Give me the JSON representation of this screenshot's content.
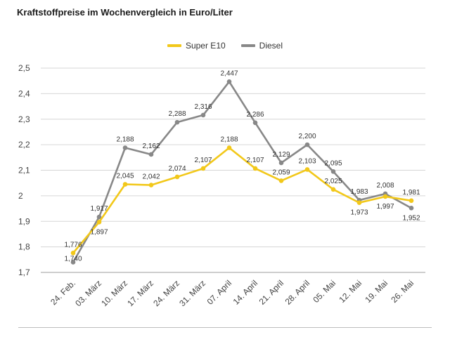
{
  "chart_data": {
    "type": "line",
    "title": "Kraftstoffpreise im Wochenvergleich in Euro/Liter",
    "categories": [
      "24. Feb.",
      "03. März",
      "10. März",
      "17. März",
      "24. März",
      "31. März",
      "07. April",
      "14. April",
      "21. April",
      "28. April",
      "05. Mai",
      "12. Mai",
      "19. Mai",
      "26. Mai"
    ],
    "series": [
      {
        "name": "Super E10",
        "color": "#f2c81a",
        "values": [
          1.776,
          1.897,
          2.045,
          2.042,
          2.074,
          2.107,
          2.188,
          2.107,
          2.059,
          2.103,
          2.025,
          1.973,
          1.997,
          1.981
        ],
        "labels": [
          "1,776",
          "1,897",
          "2,045",
          "2,042",
          "2,074",
          "2,107",
          "2,188",
          "2,107",
          "2,059",
          "2,103",
          "2,025",
          "1,973",
          "1,997",
          "1,981"
        ]
      },
      {
        "name": "Diesel",
        "color": "#888888",
        "values": [
          1.74,
          1.917,
          2.188,
          2.162,
          2.288,
          2.316,
          2.447,
          2.286,
          2.129,
          2.2,
          2.095,
          1.983,
          2.008,
          1.952
        ],
        "labels": [
          "1,740",
          "1,917",
          "2,188",
          "2,162",
          "2,288",
          "2,316",
          "2,447",
          "2,286",
          "2,129",
          "2,200",
          "2,095",
          "1,983",
          "2,008",
          "1,952"
        ]
      }
    ],
    "yticks": [
      1.7,
      1.8,
      1.9,
      2.0,
      2.1,
      2.2,
      2.3,
      2.4,
      2.5
    ],
    "ytick_labels": [
      "1,7",
      "1,8",
      "1,9",
      "2",
      "2,1",
      "2,2",
      "2,3",
      "2,4",
      "2,5"
    ],
    "ylim": [
      1.7,
      2.5
    ],
    "xlabel": "",
    "ylabel": "",
    "grid": true,
    "legend_position": "top-center"
  }
}
